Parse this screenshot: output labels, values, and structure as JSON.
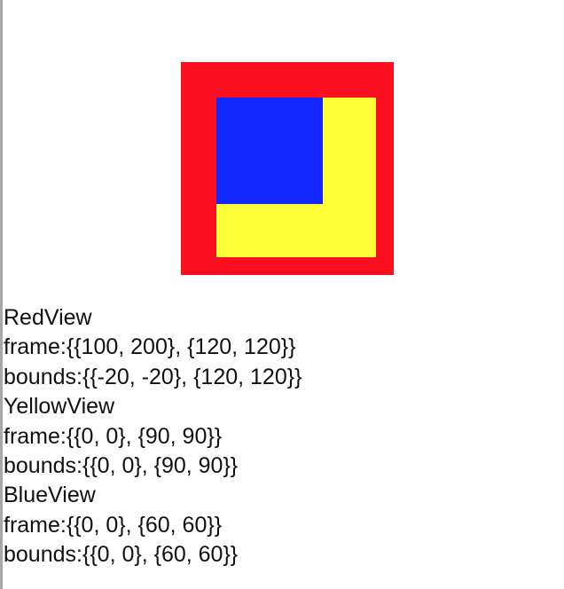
{
  "views": {
    "red": {
      "color": "#fc1020"
    },
    "yellow": {
      "color": "#fefe38"
    },
    "blue": {
      "color": "#1228fe"
    }
  },
  "info_lines": [
    "RedView",
    "frame:{{100, 200}, {120, 120}}",
    "bounds:{{-20, -20}, {120, 120}}",
    "YellowView",
    "frame:{{0, 0}, {90, 90}}",
    "bounds:{{0, 0}, {90, 90}}",
    "BlueView",
    "frame:{{0, 0}, {60, 60}}",
    "bounds:{{0, 0}, {60, 60}}"
  ]
}
